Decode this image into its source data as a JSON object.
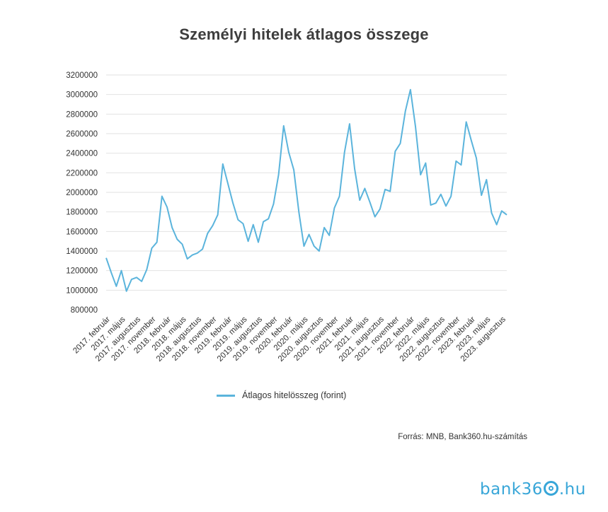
{
  "chart_data": {
    "type": "line",
    "title": "Személyi hitelek átlagos összege",
    "xlabel": "",
    "ylabel": "",
    "ylim": [
      800000,
      3200000
    ],
    "yticks": [
      800000,
      1000000,
      1200000,
      1400000,
      1600000,
      1800000,
      2000000,
      2200000,
      2400000,
      2600000,
      2800000,
      3000000,
      3200000
    ],
    "grid": true,
    "legend_position": "bottom",
    "x_tick_labels": [
      "2017. február",
      "2017. május",
      "2017. augusztus",
      "2017. november",
      "2018. február",
      "2018. május",
      "2018. augusztus",
      "2018. november",
      "2019. február",
      "2019. május",
      "2019. augusztus",
      "2019. november",
      "2020. február",
      "2020. május",
      "2020. augusztus",
      "2020. november",
      "2021. február",
      "2021. május",
      "2021. augusztus",
      "2021. november",
      "2022. február",
      "2022. május",
      "2022. augusztus",
      "2022. november",
      "2023. február",
      "2023. május",
      "2023. augusztus"
    ],
    "series": [
      {
        "name": "Átlagos hitelösszeg (forint)",
        "color": "#5bb4dc",
        "values": [
          1330000,
          1180000,
          1040000,
          1200000,
          990000,
          1110000,
          1130000,
          1090000,
          1210000,
          1430000,
          1490000,
          1960000,
          1850000,
          1640000,
          1520000,
          1470000,
          1320000,
          1360000,
          1380000,
          1420000,
          1580000,
          1660000,
          1770000,
          2290000,
          2090000,
          1890000,
          1720000,
          1680000,
          1500000,
          1670000,
          1490000,
          1700000,
          1730000,
          1880000,
          2180000,
          2680000,
          2410000,
          2230000,
          1800000,
          1450000,
          1570000,
          1450000,
          1400000,
          1640000,
          1560000,
          1840000,
          1960000,
          2410000,
          2700000,
          2240000,
          1920000,
          2040000,
          1900000,
          1750000,
          1830000,
          2030000,
          2010000,
          2420000,
          2500000,
          2830000,
          3050000,
          2670000,
          2180000,
          2300000,
          1870000,
          1890000,
          1980000,
          1860000,
          1960000,
          2320000,
          2280000,
          2720000,
          2530000,
          2350000,
          1970000,
          2130000,
          1790000,
          1670000,
          1810000,
          1770000
        ]
      }
    ]
  },
  "source": "Forrás: MNB, Bank360.hu-számítás",
  "logo": {
    "prefix": "bank36",
    "suffix": ".hu"
  }
}
